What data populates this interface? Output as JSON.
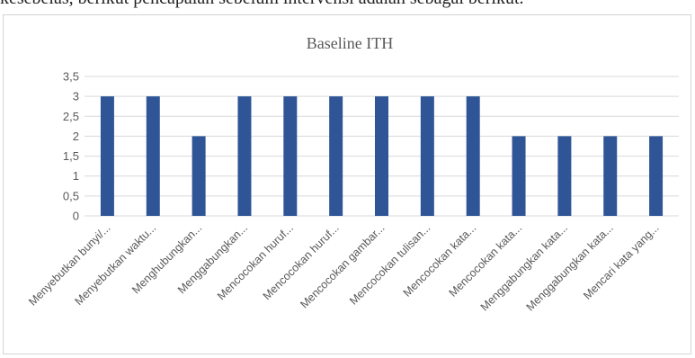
{
  "top_text": "kesebelas, berikut pencapaian sebelum intervensi adalah sebagai berikut.",
  "colors": {
    "bar": "#2f5597",
    "grid": "#d9d9d9",
    "text": "#595959"
  },
  "chart_data": {
    "type": "bar",
    "title": "Baseline ITH",
    "xlabel": "",
    "ylabel": "",
    "ylim": [
      0,
      3.5
    ],
    "yticks": [
      "0",
      "0,5",
      "1",
      "1,5",
      "2",
      "2,5",
      "3",
      "3,5"
    ],
    "grid": true,
    "legend": "none",
    "categories": [
      "Menyebutkan bunyi/...",
      "Menyebutkan waktu...",
      "Menghubungkan...",
      "Menggabungkan...",
      "Mencocokan huruf...",
      "Mencocokan huruf...",
      "Mencocokan gambar...",
      "Mencocokan tulisan...",
      "Mencocokan kata...",
      "Mencocokan kata...",
      "Menggabungkan kata...",
      "Menggabungkan kata...",
      "Mencari kata yang..."
    ],
    "values": [
      3,
      3,
      2,
      3,
      3,
      3,
      3,
      3,
      3,
      2,
      2,
      2,
      2
    ]
  }
}
